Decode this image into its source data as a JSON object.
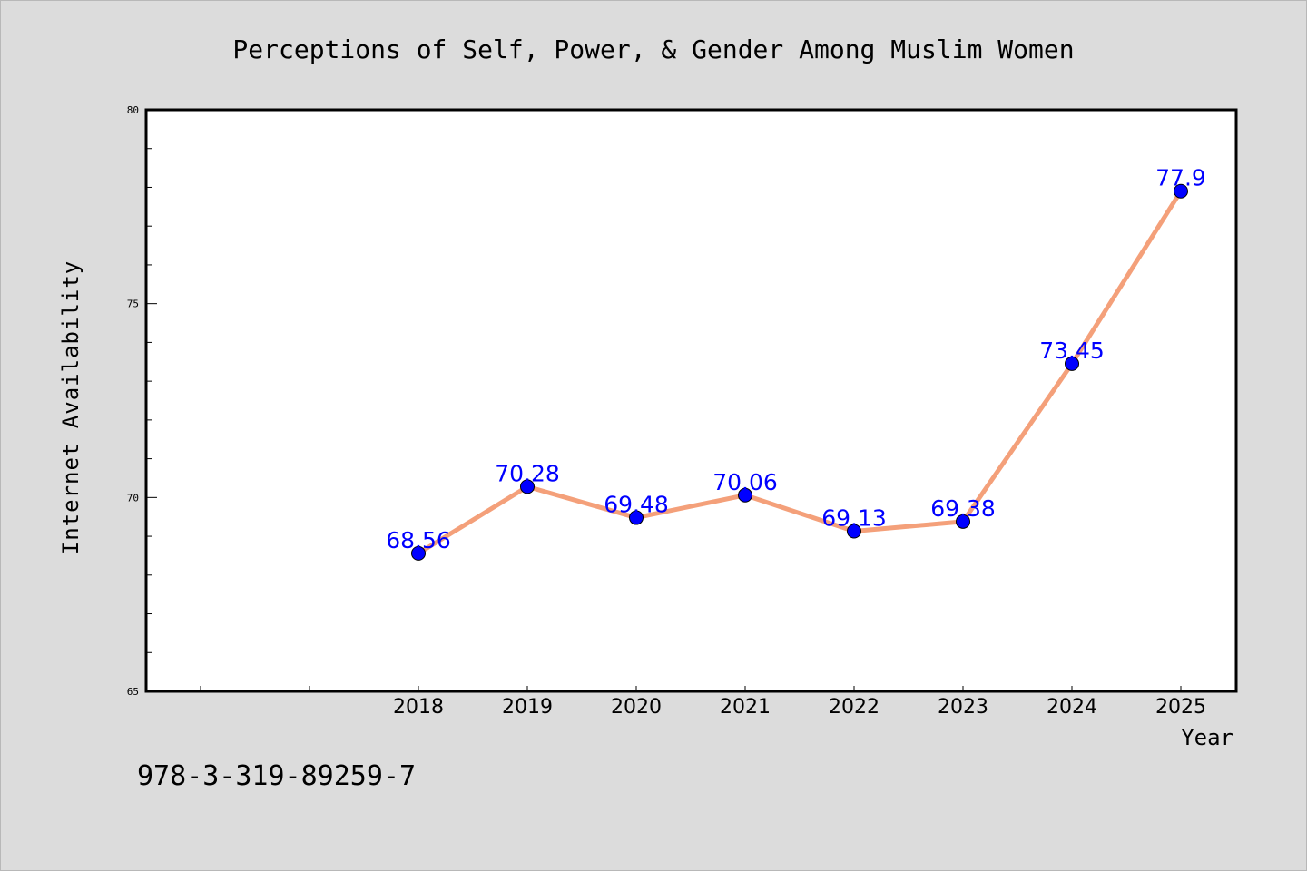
{
  "chart_data": {
    "type": "line",
    "title": "Perceptions of Self, Power, & Gender Among Muslim Women",
    "xlabel": "Year",
    "ylabel": "Internet Availability",
    "x": [
      "2018",
      "2019",
      "2020",
      "2021",
      "2022",
      "2023",
      "2024",
      "2025"
    ],
    "series": [
      {
        "values": [
          68.56,
          70.28,
          69.48,
          70.06,
          69.13,
          69.38,
          73.45,
          77.9
        ],
        "labels": [
          "68.56",
          "70.28",
          "69.48",
          "70.06",
          "69.13",
          "69.38",
          "73.45",
          "77.9"
        ]
      }
    ],
    "ylim": [
      65,
      80
    ],
    "yticks": [
      "65",
      "70",
      "75",
      "80"
    ],
    "grid": false,
    "line_color": "#f4a07a",
    "marker_color": "#0000ff"
  },
  "footer": {
    "isbn": "978-3-319-89259-7"
  }
}
